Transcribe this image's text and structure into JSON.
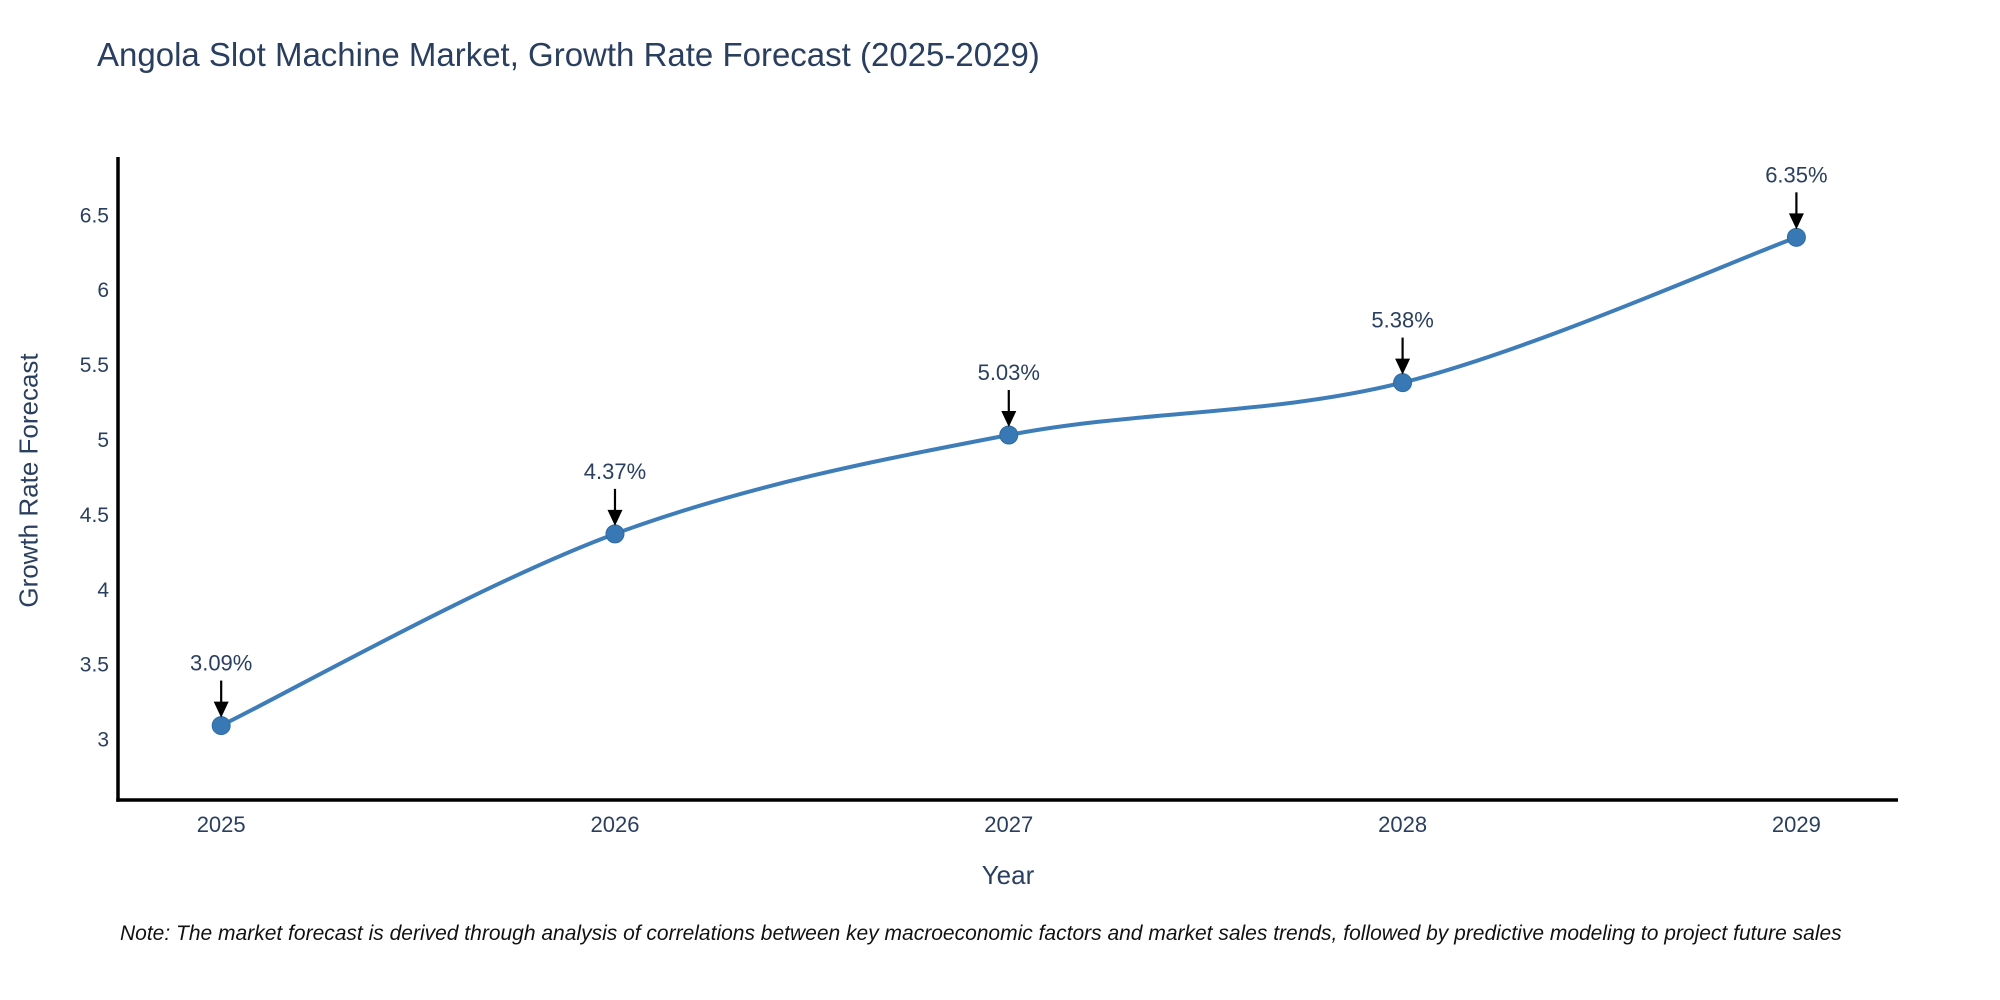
{
  "title": "Angola Slot Machine Market, Growth Rate Forecast (2025-2029)",
  "note": "Note: The market forecast is derived through analysis of correlations between key macroeconomic factors and market sales trends, followed by predictive modeling to project future sales",
  "colors": {
    "line": "#3f7db8",
    "marker_fill": "#3878b4",
    "marker_stroke": "#2f6ba3",
    "axis_line": "#000000",
    "chart_text": "#2a3f5f",
    "annotation_text": "#2a3f5f",
    "arrow": "#000000",
    "background": "#ffffff"
  },
  "chart_data": {
    "type": "line",
    "title": "Angola Slot Machine Market, Growth Rate Forecast (2025-2029)",
    "xlabel": "Year",
    "ylabel": "Growth Rate Forecast",
    "categories": [
      "2025",
      "2026",
      "2027",
      "2028",
      "2029"
    ],
    "x": [
      2025,
      2026,
      2027,
      2028,
      2029
    ],
    "series": [
      {
        "name": "Growth Rate Forecast",
        "values": [
          3.09,
          4.37,
          5.03,
          5.38,
          6.35
        ],
        "point_labels": [
          "3.09%",
          "4.37%",
          "5.03%",
          "5.38%",
          "6.35%"
        ]
      }
    ],
    "y_ticks": [
      3,
      3.5,
      4,
      4.5,
      5,
      5.5,
      6,
      6.5
    ],
    "y_tick_labels": [
      "3",
      "3.5",
      "4",
      "4.5",
      "5",
      "5.5",
      "6",
      "6.5"
    ],
    "ylim": [
      2.593,
      6.873
    ],
    "xlim": [
      2024.738,
      2029.258
    ],
    "grid": false,
    "legend_position": "none",
    "line_shape": "spline",
    "markers": true,
    "annotations_arrow": "down"
  }
}
